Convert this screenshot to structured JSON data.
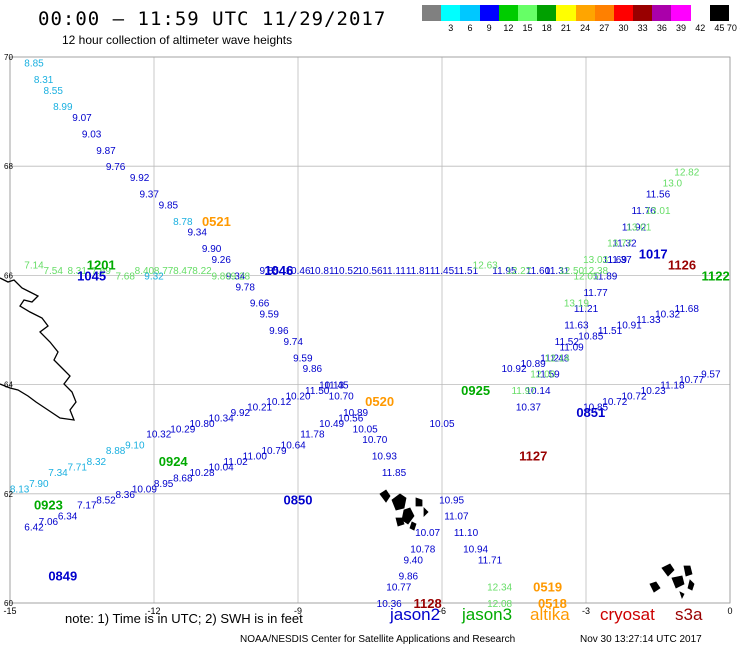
{
  "header": {
    "title": "00:00 – 11:59 UTC 11/29/2017",
    "subtitle": "12 hour collection of altimeter wave heights"
  },
  "colorbar": {
    "colors": [
      "#808080",
      "#00ffff",
      "#00c8ff",
      "#0000ff",
      "#00cc00",
      "#66ff66",
      "#00a000",
      "#ffff00",
      "#ffa500",
      "#ff8000",
      "#ff0000",
      "#990000",
      "#aa00aa",
      "#ff00ff",
      "#ffffff",
      "#000000"
    ],
    "labels": [
      "3",
      "6",
      "9",
      "12",
      "15",
      "18",
      "21",
      "24",
      "27",
      "30",
      "33",
      "36",
      "39",
      "42",
      "45",
      "70 (ft)"
    ]
  },
  "axes": {
    "lon_ticks": [
      "-15",
      "-12",
      "-9",
      "-6",
      "-3",
      "0"
    ],
    "lat_ticks": [
      "70",
      "68",
      "66",
      "64",
      "62",
      "60"
    ]
  },
  "colors": {
    "jason2": "#0000cc",
    "jason2_light": "#1ab0e0",
    "jason3": "#00aa00",
    "jason3_light": "#66dd66",
    "altika": "#ff9900",
    "cryosat": "#cc0000",
    "s3a": "#990000"
  },
  "tracks": [
    {
      "color": "jason2_light",
      "points": [
        [
          -14.5,
          69.9,
          "8.85"
        ],
        [
          -14.3,
          69.6,
          "8.31"
        ],
        [
          -14.1,
          69.4,
          "8.55"
        ],
        [
          -13.9,
          69.1,
          "8.99"
        ]
      ]
    },
    {
      "color": "jason2",
      "points": [
        [
          -13.5,
          68.9,
          "9.07"
        ],
        [
          -13.3,
          68.6,
          "9.03"
        ],
        [
          -13.0,
          68.3,
          "9.87"
        ],
        [
          -12.8,
          68.0,
          "9.76"
        ],
        [
          -12.3,
          67.8,
          "9.92"
        ],
        [
          -12.1,
          67.5,
          "9.37"
        ],
        [
          -11.7,
          67.3,
          "9.85"
        ]
      ]
    },
    {
      "color": "jason2_light",
      "points": [
        [
          -11.4,
          67.0,
          "8.78"
        ]
      ]
    },
    {
      "color": "jason2",
      "points": [
        [
          -11.1,
          66.8,
          "9.34"
        ],
        [
          -10.8,
          66.5,
          "9.90"
        ],
        [
          -10.6,
          66.3,
          "9.26"
        ],
        [
          -10.3,
          66.0,
          "9.34"
        ],
        [
          -10.1,
          65.8,
          "9.78"
        ],
        [
          -9.8,
          65.5,
          "9.66"
        ],
        [
          -9.6,
          65.3,
          "9.59"
        ],
        [
          -9.4,
          65.0,
          "9.96"
        ],
        [
          -9.1,
          64.8,
          "9.74"
        ],
        [
          -8.9,
          64.5,
          "9.59"
        ],
        [
          -8.7,
          64.3,
          "9.86"
        ],
        [
          -8.3,
          64.0,
          "10.13"
        ],
        [
          -8.1,
          63.8,
          "10.70"
        ],
        [
          -7.8,
          63.5,
          "10.89"
        ]
      ]
    },
    {
      "color": "jason2",
      "points": [
        [
          -7.6,
          63.2,
          "10.05"
        ],
        [
          -7.4,
          63.0,
          "10.70"
        ],
        [
          -7.2,
          62.7,
          "10.93"
        ],
        [
          -7.0,
          62.4,
          "11.85"
        ],
        [
          -5.8,
          61.9,
          "10.95"
        ],
        [
          -5.7,
          61.6,
          "11.07"
        ],
        [
          -5.5,
          61.3,
          "11.10"
        ],
        [
          -5.3,
          61.0,
          "10.94"
        ],
        [
          -5.0,
          60.8,
          "11.71"
        ]
      ]
    },
    {
      "color": "jason2",
      "points": [
        [
          -6.3,
          61.3,
          "10.07"
        ],
        [
          -6.4,
          61.0,
          "10.78"
        ],
        [
          -6.6,
          60.8,
          "9.40"
        ],
        [
          -6.7,
          60.5,
          "9.86"
        ],
        [
          -6.9,
          60.3,
          "10.77"
        ],
        [
          -7.1,
          60.0,
          "10.36"
        ]
      ]
    },
    {
      "color": "jason3_light",
      "points": [
        [
          -4.8,
          60.3,
          "12.34"
        ],
        [
          -4.8,
          60.0,
          "12.08"
        ]
      ]
    },
    {
      "color": "jason2",
      "points": [
        [
          -14.5,
          61.4,
          "6.42"
        ],
        [
          -14.2,
          61.5,
          "7.06"
        ],
        [
          -13.8,
          61.6,
          "6.34"
        ],
        [
          -13.4,
          61.8,
          "7.17"
        ],
        [
          -13.0,
          61.9,
          "8.52"
        ],
        [
          -12.6,
          62.0,
          "8.36"
        ],
        [
          -12.2,
          62.1,
          "10.09"
        ],
        [
          -11.8,
          62.2,
          "8.95"
        ],
        [
          -11.4,
          62.3,
          "8.68"
        ],
        [
          -11.0,
          62.4,
          "10.28"
        ],
        [
          -10.6,
          62.5,
          "10.04"
        ],
        [
          -10.3,
          62.6,
          "11.02"
        ],
        [
          -9.9,
          62.7,
          "11.00"
        ],
        [
          -9.5,
          62.8,
          "10.79"
        ],
        [
          -9.1,
          62.9,
          "10.64"
        ],
        [
          -8.7,
          63.1,
          "11.78"
        ],
        [
          -8.3,
          63.3,
          "10.49"
        ],
        [
          -7.9,
          63.4,
          "10.56"
        ]
      ]
    },
    {
      "color": "jason2_light",
      "points": [
        [
          -14.8,
          62.1,
          "8.13"
        ],
        [
          -14.4,
          62.2,
          "7.90"
        ],
        [
          -14.0,
          62.4,
          "7.34"
        ],
        [
          -13.6,
          62.5,
          "7.71"
        ],
        [
          -13.2,
          62.6,
          "8.32"
        ],
        [
          -12.8,
          62.8,
          "8.88"
        ],
        [
          -12.4,
          62.9,
          "9.10"
        ]
      ]
    },
    {
      "color": "jason2",
      "points": [
        [
          -11.9,
          63.1,
          "10.32"
        ],
        [
          -11.4,
          63.2,
          "10.29"
        ],
        [
          -11.0,
          63.3,
          "10.80"
        ],
        [
          -10.6,
          63.4,
          "10.34"
        ],
        [
          -10.2,
          63.5,
          "9.92"
        ],
        [
          -9.8,
          63.6,
          "10.21"
        ],
        [
          -9.4,
          63.7,
          "10.12"
        ],
        [
          -9.0,
          63.8,
          "10.20"
        ],
        [
          -8.6,
          63.9,
          "11.50"
        ],
        [
          -8.2,
          64.0,
          "11.45"
        ]
      ]
    },
    {
      "color": "jason2",
      "points": [
        [
          -4.5,
          64.3,
          "10.92"
        ],
        [
          -4.1,
          64.4,
          "10.89"
        ],
        [
          -3.7,
          64.5,
          "11.21"
        ],
        [
          -3.3,
          64.7,
          "11.09"
        ],
        [
          -2.9,
          64.9,
          "10.85"
        ],
        [
          -2.5,
          65.0,
          "11.51"
        ],
        [
          -2.1,
          65.1,
          "10.91"
        ],
        [
          -1.7,
          65.2,
          "11.33"
        ],
        [
          -1.3,
          65.3,
          "10.32"
        ],
        [
          -0.9,
          65.4,
          "11.68"
        ]
      ]
    },
    {
      "color": "jason2",
      "points": [
        [
          -2.8,
          63.6,
          "10.85"
        ],
        [
          -2.4,
          63.7,
          "10.72"
        ],
        [
          -2.0,
          63.8,
          "10.72"
        ],
        [
          -1.6,
          63.9,
          "10.23"
        ],
        [
          -1.2,
          64.0,
          "11.18"
        ],
        [
          -0.8,
          64.1,
          "10.77"
        ],
        [
          -0.4,
          64.2,
          "9.57"
        ]
      ]
    },
    {
      "color": "jason2",
      "points": [
        [
          -1.5,
          67.5,
          "11.56"
        ],
        [
          -1.8,
          67.2,
          "11.76"
        ],
        [
          -2.0,
          66.9,
          "11.92"
        ],
        [
          -2.2,
          66.6,
          "11.32"
        ],
        [
          -2.4,
          66.3,
          "11.69"
        ],
        [
          -2.6,
          66.0,
          "11.89"
        ],
        [
          -2.8,
          65.7,
          "11.77"
        ],
        [
          -3.0,
          65.4,
          "11.21"
        ],
        [
          -3.2,
          65.1,
          "11.63"
        ],
        [
          -3.4,
          64.8,
          "11.52"
        ],
        [
          -3.6,
          64.5,
          "11.48"
        ],
        [
          -3.8,
          64.2,
          "11.59"
        ],
        [
          -4.0,
          63.9,
          "10.14"
        ],
        [
          -4.2,
          63.6,
          "10.37"
        ],
        [
          -6.0,
          63.3,
          "10.05"
        ]
      ]
    },
    {
      "color": "jason3_light",
      "points": [
        [
          -0.9,
          67.9,
          "12.82"
        ],
        [
          -1.2,
          67.7,
          "13.0"
        ],
        [
          -1.5,
          67.2,
          "13.01"
        ],
        [
          -1.9,
          66.9,
          "13.01"
        ],
        [
          -2.3,
          66.6,
          "13.77"
        ],
        [
          -2.8,
          66.3,
          "13.03"
        ],
        [
          -3.0,
          66.0,
          "12.05"
        ],
        [
          -3.2,
          65.5,
          "13.19"
        ],
        [
          -3.6,
          64.5,
          "12.14"
        ],
        [
          -3.9,
          64.2,
          "12.00"
        ],
        [
          -4.3,
          63.9,
          "11.97"
        ]
      ]
    },
    {
      "color": "jason2",
      "points": [
        [
          -2.3,
          66.3,
          "11.37"
        ]
      ]
    },
    {
      "color": "jason3_light",
      "points": [
        [
          -14.5,
          66.2,
          "7.14"
        ],
        [
          -14.1,
          66.1,
          "7.54"
        ],
        [
          -13.6,
          66.1,
          "8.31"
        ],
        [
          -13.1,
          66.1,
          "7.69"
        ],
        [
          -12.6,
          66.0,
          "7.68"
        ],
        [
          -12.2,
          66.1,
          "8.40"
        ],
        [
          -11.8,
          66.1,
          "8.77"
        ],
        [
          -11.4,
          66.1,
          "8.47"
        ],
        [
          -11.0,
          66.1,
          "8.22"
        ],
        [
          -10.6,
          66.0,
          "9.80"
        ],
        [
          -10.2,
          66.0,
          "9.28"
        ]
      ]
    },
    {
      "color": "jason2_light",
      "points": [
        [
          -12.0,
          66.0,
          "9.32"
        ]
      ]
    },
    {
      "color": "jason2",
      "points": [
        [
          -9.6,
          66.1,
          "9.85"
        ],
        [
          -9.0,
          66.1,
          "10.46"
        ],
        [
          -8.5,
          66.1,
          "10.81"
        ],
        [
          -8.0,
          66.1,
          "10.52"
        ],
        [
          -7.5,
          66.1,
          "10.56"
        ],
        [
          -7.0,
          66.1,
          "11.11"
        ],
        [
          -6.5,
          66.1,
          "11.81"
        ],
        [
          -6.0,
          66.1,
          "11.45"
        ],
        [
          -5.5,
          66.1,
          "11.51"
        ],
        [
          -4.7,
          66.1,
          "11.95"
        ],
        [
          -4.0,
          66.1,
          "11.60"
        ],
        [
          -3.6,
          66.1,
          "11.31"
        ]
      ]
    },
    {
      "color": "jason3_light",
      "points": [
        [
          -5.1,
          66.2,
          "12.63"
        ],
        [
          -4.4,
          66.1,
          "12.27"
        ],
        [
          -3.3,
          66.1,
          "12.50"
        ],
        [
          -2.8,
          66.1,
          "12.38"
        ]
      ]
    }
  ],
  "tracks_mode": "labels",
  "pass_labels": [
    {
      "lon": -9.4,
      "lat": 66.1,
      "text": "1046",
      "color": "jason2"
    },
    {
      "lon": -13.3,
      "lat": 66.0,
      "text": "1045",
      "color": "jason2"
    },
    {
      "lon": -13.1,
      "lat": 66.2,
      "text": "1201",
      "color": "jason3"
    },
    {
      "lon": -7.3,
      "lat": 63.7,
      "text": "0520",
      "color": "altika"
    },
    {
      "lon": -10.7,
      "lat": 67.0,
      "text": "0521",
      "color": "altika"
    },
    {
      "lon": -5.3,
      "lat": 63.9,
      "text": "0925",
      "color": "jason3"
    },
    {
      "lon": -11.6,
      "lat": 62.6,
      "text": "0924",
      "color": "jason3"
    },
    {
      "lon": -14.2,
      "lat": 61.8,
      "text": "0923",
      "color": "jason3"
    },
    {
      "lon": -13.9,
      "lat": 60.5,
      "text": "0849",
      "color": "jason2"
    },
    {
      "lon": -9.0,
      "lat": 61.9,
      "text": "0850",
      "color": "jason2"
    },
    {
      "lon": -2.9,
      "lat": 63.5,
      "text": "0851",
      "color": "jason2"
    },
    {
      "lon": -4.1,
      "lat": 62.7,
      "text": "1127",
      "color": "s3a"
    },
    {
      "lon": -6.3,
      "lat": 60.0,
      "text": "1128",
      "color": "s3a"
    },
    {
      "lon": -1.0,
      "lat": 66.2,
      "text": "1126",
      "color": "s3a"
    },
    {
      "lon": -1.6,
      "lat": 66.4,
      "text": "1017",
      "color": "jason2"
    },
    {
      "lon": -0.3,
      "lat": 66.0,
      "text": "1122",
      "color": "jason3"
    },
    {
      "lon": -3.8,
      "lat": 60.3,
      "text": "0519",
      "color": "altika"
    },
    {
      "lon": -3.7,
      "lat": 60.0,
      "text": "0518",
      "color": "altika"
    }
  ],
  "footer": {
    "note": "note: 1) Time is in UTC; 2) SWH is in feet",
    "satellites": [
      {
        "name": "jason2",
        "color": "jason2"
      },
      {
        "name": "jason3",
        "color": "jason3"
      },
      {
        "name": "altika",
        "color": "altika"
      },
      {
        "name": "cryosat",
        "color": "cryosat"
      },
      {
        "name": "s3a",
        "color": "s3a"
      }
    ],
    "credit": "NOAA/NESDIS Center for Satellite Applications and Research",
    "timestamp": "Nov 30 13:27:14 UTC 2017"
  }
}
